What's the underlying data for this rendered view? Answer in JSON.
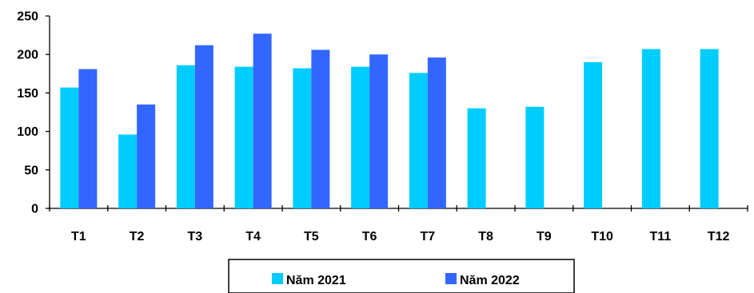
{
  "chart_data": {
    "type": "bar",
    "categories": [
      "T1",
      "T2",
      "T3",
      "T4",
      "T5",
      "T6",
      "T7",
      "T8",
      "T9",
      "T10",
      "T11",
      "T12"
    ],
    "series": [
      {
        "name": "Năm 2021",
        "color": "#00CCFF",
        "values": [
          157,
          96,
          186,
          184,
          182,
          184,
          176,
          130,
          132,
          190,
          207,
          207
        ]
      },
      {
        "name": "Năm 2022",
        "color": "#3366FF",
        "values": [
          181,
          135,
          212,
          227,
          206,
          200,
          196,
          null,
          null,
          null,
          null,
          null
        ]
      }
    ],
    "ylim": [
      0,
      250
    ],
    "yticks": [
      "0",
      "50",
      "100",
      "150",
      "200",
      "250"
    ],
    "grid": false,
    "legend_position": "bottom"
  }
}
